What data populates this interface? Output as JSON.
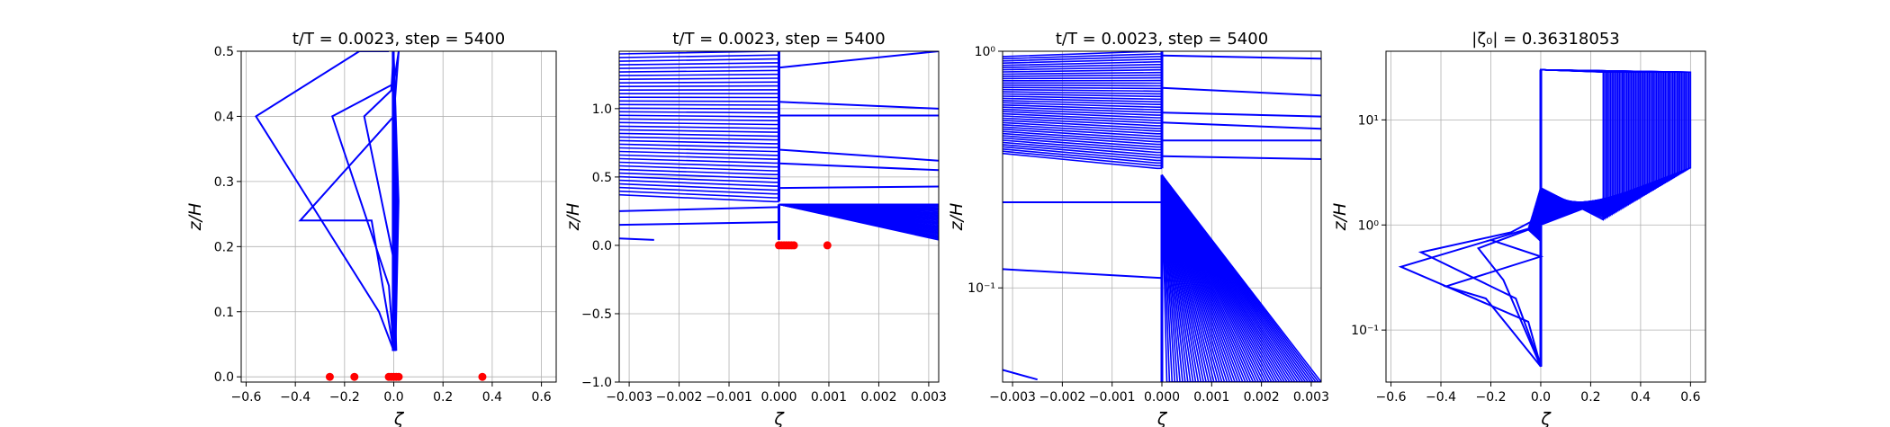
{
  "chart_data": [
    {
      "type": "line",
      "title": "t/T = 0.0023, step = 5400",
      "xlabel": "ζ",
      "ylabel": "z/H",
      "xlim": [
        -0.62,
        0.66
      ],
      "ylim": [
        -0.008,
        0.5
      ],
      "yscale": "linear",
      "grid": true,
      "xticks": [
        -0.6,
        -0.4,
        -0.2,
        0.0,
        0.2,
        0.4,
        0.6
      ],
      "xtick_labels": [
        "−0.6",
        "−0.4",
        "−0.2",
        "0.0",
        "0.2",
        "0.4",
        "0.6"
      ],
      "yticks": [
        0.0,
        0.1,
        0.2,
        0.3,
        0.4,
        0.5
      ],
      "ytick_labels": [
        "0.0",
        "0.1",
        "0.2",
        "0.3",
        "0.4",
        "0.5"
      ],
      "line_color": "#0000ff",
      "marker_color": "#ff0000",
      "series": [
        {
          "x": [
            0.0,
            -0.02,
            -0.25,
            0.0,
            0.02
          ],
          "y": [
            0.04,
            0.14,
            0.4,
            0.45,
            0.5
          ]
        },
        {
          "x": [
            0.0,
            -0.06,
            -0.56,
            -0.14,
            -0.02
          ],
          "y": [
            0.04,
            0.1,
            0.4,
            0.5,
            0.5
          ]
        },
        {
          "x": [
            0.0,
            -0.09,
            -0.38,
            0.0,
            0.02
          ],
          "y": [
            0.04,
            0.24,
            0.24,
            0.4,
            0.5
          ]
        },
        {
          "x": [
            0.01,
            0.0,
            -0.12,
            -0.01,
            0.0
          ],
          "y": [
            0.04,
            0.18,
            0.4,
            0.44,
            0.5
          ]
        }
      ],
      "band": {
        "x_left": -0.005,
        "x_right": 0.02,
        "y_bottom": 0.04,
        "y_top": 0.5
      },
      "markers": {
        "x": [
          -0.26,
          -0.16,
          -0.02,
          -0.01,
          0.0,
          0.01,
          0.02,
          0.36
        ],
        "y": [
          0,
          0,
          0,
          0,
          0,
          0,
          0,
          0
        ]
      }
    },
    {
      "type": "line",
      "title": "t/T = 0.0023, step = 5400",
      "xlabel": "ζ",
      "ylabel": "z/H",
      "xlim": [
        -0.0032,
        0.0032
      ],
      "ylim": [
        -1.0,
        1.42
      ],
      "yscale": "linear",
      "grid": true,
      "xticks": [
        -0.003,
        -0.002,
        -0.001,
        0.0,
        0.001,
        0.002,
        0.003
      ],
      "xtick_labels": [
        "−0.003",
        "−0.002",
        "−0.001",
        "0.000",
        "0.001",
        "0.002",
        "0.003"
      ],
      "yticks": [
        -1.0,
        -0.5,
        0.0,
        0.5,
        1.0
      ],
      "ytick_labels": [
        "−1.0",
        "−0.5",
        "0.0",
        "0.5",
        "1.0"
      ],
      "line_color": "#0000ff",
      "marker_color": "#ff0000",
      "left_block": {
        "y_lo": 0.32,
        "y_hi": 1.42,
        "y_knee_lo": 0.37,
        "y_knee_hi": 1.4,
        "count": 40
      },
      "right_block": {
        "y_lo": 0.04,
        "y_hi": 0.3,
        "count": 30
      },
      "extra_lines": [
        {
          "x": [
            0.0,
            0.0032
          ],
          "y": [
            1.3,
            1.42
          ]
        },
        {
          "x": [
            0.0,
            0.0032
          ],
          "y": [
            1.05,
            1.0
          ]
        },
        {
          "x": [
            0.0,
            0.0032
          ],
          "y": [
            0.95,
            0.95
          ]
        },
        {
          "x": [
            0.0,
            0.0032
          ],
          "y": [
            0.7,
            0.62
          ]
        },
        {
          "x": [
            0.0,
            0.0032
          ],
          "y": [
            0.6,
            0.55
          ]
        },
        {
          "x": [
            0.0,
            0.0032
          ],
          "y": [
            0.42,
            0.43
          ]
        },
        {
          "x": [
            -0.0032,
            0.0
          ],
          "y": [
            0.15,
            0.17
          ]
        },
        {
          "x": [
            -0.0032,
            0.0
          ],
          "y": [
            0.25,
            0.28
          ]
        },
        {
          "x": [
            -0.0032,
            -0.0025
          ],
          "y": [
            0.05,
            0.04
          ]
        }
      ],
      "markers": {
        "x": [
          0.0,
          5e-05,
          0.0001,
          0.00015,
          0.0002,
          0.00025,
          0.0003,
          0.00097
        ],
        "y": [
          0,
          0,
          0,
          0,
          0,
          0,
          0,
          0
        ]
      }
    },
    {
      "type": "line",
      "title": "t/T = 0.0023, step = 5400",
      "xlabel": "ζ",
      "ylabel": "z/H",
      "xlim": [
        -0.0032,
        0.0032
      ],
      "ylim": [
        0.04,
        1.0
      ],
      "yscale": "log",
      "grid": true,
      "xticks": [
        -0.003,
        -0.002,
        -0.001,
        0.0,
        0.001,
        0.002,
        0.003
      ],
      "xtick_labels": [
        "−0.003",
        "−0.002",
        "−0.001",
        "0.000",
        "0.001",
        "0.002",
        "0.003"
      ],
      "yticks": [
        0.1,
        1.0
      ],
      "ytick_labels": [
        "10⁻¹",
        "10⁰"
      ],
      "line_color": "#0000ff",
      "left_block": {
        "y_lo": 0.32,
        "y_hi": 1.0,
        "y_knee_lo": 0.37,
        "y_knee_hi": 0.95,
        "count": 45
      },
      "right_block": {
        "y_lo": 0.04,
        "y_hi": 0.3,
        "count": 60
      },
      "extra_lines": [
        {
          "x": [
            0.0,
            0.0032
          ],
          "y": [
            0.96,
            0.93
          ]
        },
        {
          "x": [
            0.0,
            0.0032
          ],
          "y": [
            0.7,
            0.65
          ]
        },
        {
          "x": [
            0.0,
            0.0032
          ],
          "y": [
            0.55,
            0.53
          ]
        },
        {
          "x": [
            0.0,
            0.0032
          ],
          "y": [
            0.5,
            0.47
          ]
        },
        {
          "x": [
            0.0,
            0.0032
          ],
          "y": [
            0.42,
            0.42
          ]
        },
        {
          "x": [
            0.0,
            0.0032
          ],
          "y": [
            0.36,
            0.35
          ]
        },
        {
          "x": [
            -0.0032,
            0.0
          ],
          "y": [
            0.23,
            0.23
          ]
        },
        {
          "x": [
            -0.0032,
            0.0
          ],
          "y": [
            0.12,
            0.11
          ]
        },
        {
          "x": [
            -0.0032,
            -0.0025
          ],
          "y": [
            0.045,
            0.041
          ]
        }
      ]
    },
    {
      "type": "line",
      "title": "|ζ₀| = 0.36318053",
      "xlabel": "ζ",
      "ylabel": "z/H",
      "xlim": [
        -0.62,
        0.66
      ],
      "ylim": [
        0.032,
        45
      ],
      "yscale": "log",
      "grid": true,
      "xticks": [
        -0.6,
        -0.4,
        -0.2,
        0.0,
        0.2,
        0.4,
        0.6
      ],
      "xtick_labels": [
        "−0.6",
        "−0.4",
        "−0.2",
        "0.0",
        "0.2",
        "0.4",
        "0.6"
      ],
      "yticks": [
        0.1,
        1.0,
        10.0
      ],
      "ytick_labels": [
        "10⁻¹",
        "10⁰",
        "10¹"
      ],
      "line_color": "#0000ff",
      "spiky": [
        {
          "x": [
            0.0,
            -0.05,
            -0.56,
            -0.2,
            0.0
          ],
          "y": [
            0.045,
            0.12,
            0.4,
            0.72,
            1.0
          ]
        },
        {
          "x": [
            0.0,
            -0.1,
            -0.48,
            -0.12,
            0.0
          ],
          "y": [
            0.045,
            0.2,
            0.55,
            0.85,
            1.2
          ]
        },
        {
          "x": [
            0.0,
            -0.22,
            -0.38,
            0.0,
            -0.2
          ],
          "y": [
            0.045,
            0.2,
            0.26,
            0.5,
            0.72
          ]
        },
        {
          "x": [
            0.0,
            -0.15,
            -0.25,
            -0.05,
            0.0
          ],
          "y": [
            0.045,
            0.3,
            0.6,
            0.9,
            1.3
          ]
        }
      ],
      "fan": {
        "count": 60,
        "y_top": 30,
        "y_split": 3.5,
        "x_right_max": 0.6,
        "x_right_min": 0.25
      }
    }
  ]
}
